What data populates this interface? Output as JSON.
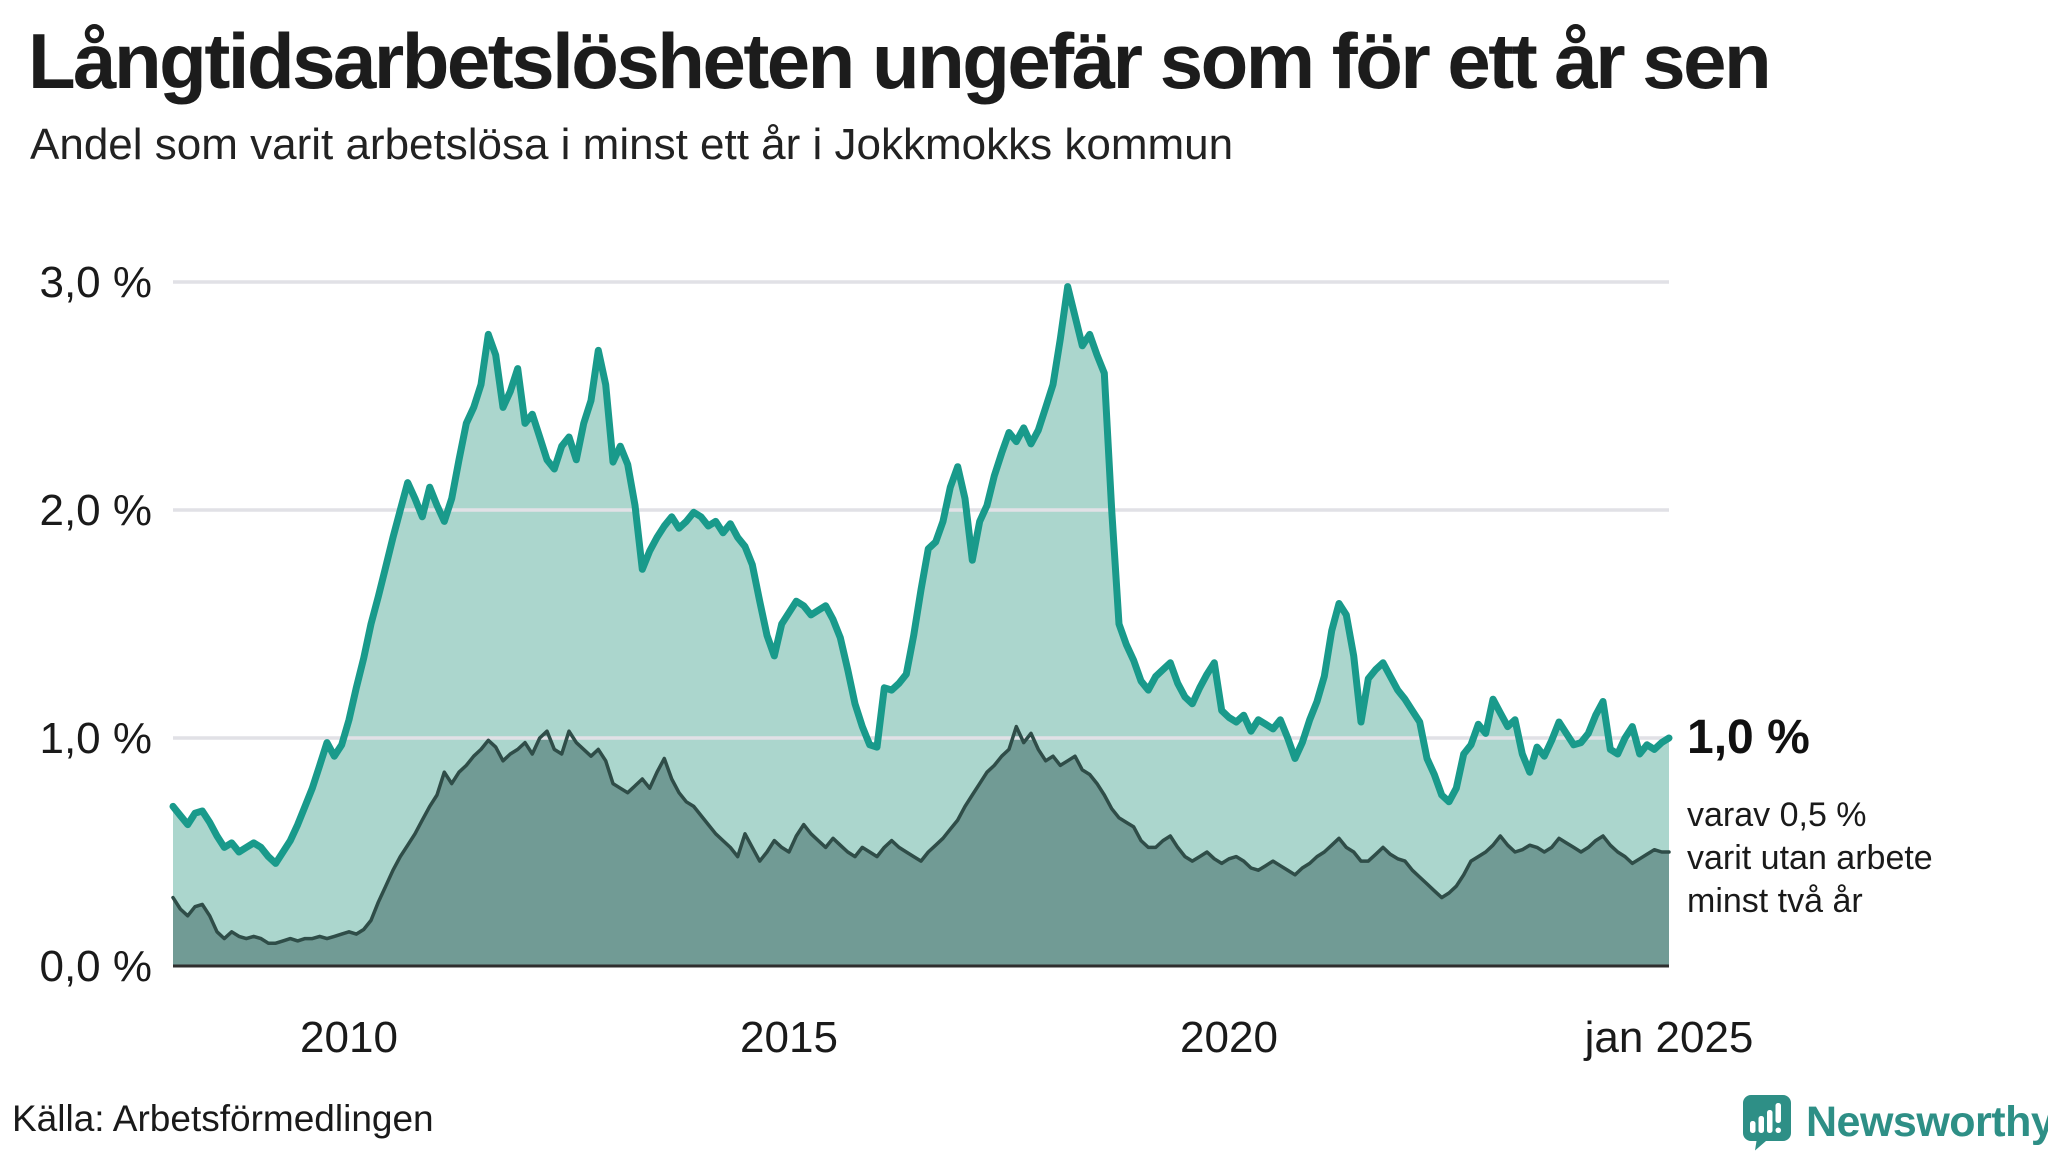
{
  "header": {
    "title": "Långtidsarbetslösheten ungefär som för ett år sen",
    "subtitle": "Andel som varit arbetslösa i minst ett år i Jokkmokks kommun"
  },
  "chart_data": {
    "type": "area",
    "title": "Långtidsarbetslösheten ungefär som för ett år sen",
    "subtitle": "Andel som varit arbetslösa i minst ett år i Jokkmokks kommun",
    "unit": "%",
    "x_start": "jan 2008",
    "x_end": "jan 2025",
    "x_total_years": 17,
    "y_max": 3,
    "grid_on": true,
    "grid_color": "#e1e1e6",
    "axis_color": "#2e2e2e",
    "y_ticks": [
      {
        "value": 3,
        "label": "3,0 %"
      },
      {
        "value": 2,
        "label": "2,0 %"
      },
      {
        "value": 1,
        "label": "1,0 %"
      },
      {
        "value": 0,
        "label": "0,0 %"
      }
    ],
    "x_ticks": [
      {
        "label": "2010",
        "t": 2
      },
      {
        "label": "2015",
        "t": 7
      },
      {
        "label": "2020",
        "t": 12
      },
      {
        "label": "jan 2025",
        "t": 17
      }
    ],
    "series": [
      {
        "name": "Andel arbetslösa minst ett år",
        "color": "#199a8b",
        "fill": "#abd6cd",
        "stroke_width": 7,
        "values": [
          0.7,
          0.66,
          0.62,
          0.67,
          0.68,
          0.63,
          0.57,
          0.52,
          0.54,
          0.5,
          0.52,
          0.54,
          0.52,
          0.48,
          0.45,
          0.5,
          0.55,
          0.62,
          0.7,
          0.78,
          0.88,
          0.98,
          0.92,
          0.97,
          1.08,
          1.22,
          1.35,
          1.5,
          1.62,
          1.75,
          1.88,
          2.0,
          2.12,
          2.05,
          1.97,
          2.1,
          2.02,
          1.95,
          2.05,
          2.22,
          2.38,
          2.45,
          2.55,
          2.77,
          2.68,
          2.45,
          2.52,
          2.62,
          2.38,
          2.42,
          2.32,
          2.22,
          2.18,
          2.28,
          2.32,
          2.22,
          2.38,
          2.48,
          2.7,
          2.55,
          2.21,
          2.28,
          2.2,
          2.02,
          1.74,
          1.82,
          1.88,
          1.93,
          1.97,
          1.92,
          1.95,
          1.99,
          1.97,
          1.93,
          1.95,
          1.9,
          1.94,
          1.88,
          1.84,
          1.76,
          1.6,
          1.45,
          1.36,
          1.5,
          1.55,
          1.6,
          1.58,
          1.54,
          1.56,
          1.58,
          1.52,
          1.44,
          1.3,
          1.15,
          1.05,
          0.97,
          0.96,
          1.22,
          1.21,
          1.24,
          1.28,
          1.45,
          1.65,
          1.83,
          1.86,
          1.95,
          2.1,
          2.19,
          2.05,
          1.78,
          1.95,
          2.02,
          2.15,
          2.25,
          2.34,
          2.3,
          2.36,
          2.29,
          2.35,
          2.45,
          2.55,
          2.75,
          2.98,
          2.85,
          2.72,
          2.77,
          2.68,
          2.6,
          2.0,
          1.5,
          1.41,
          1.34,
          1.25,
          1.21,
          1.27,
          1.3,
          1.33,
          1.24,
          1.18,
          1.15,
          1.22,
          1.28,
          1.33,
          1.12,
          1.09,
          1.07,
          1.1,
          1.03,
          1.08,
          1.06,
          1.04,
          1.08,
          1.0,
          0.91,
          0.98,
          1.08,
          1.16,
          1.27,
          1.47,
          1.59,
          1.54,
          1.36,
          1.07,
          1.26,
          1.3,
          1.33,
          1.27,
          1.21,
          1.17,
          1.12,
          1.07,
          0.91,
          0.84,
          0.75,
          0.72,
          0.78,
          0.93,
          0.97,
          1.06,
          1.02,
          1.17,
          1.11,
          1.05,
          1.08,
          0.93,
          0.85,
          0.96,
          0.92,
          0.99,
          1.07,
          1.02,
          0.97,
          0.98,
          1.02,
          1.1,
          1.16,
          0.95,
          0.93,
          1.0,
          1.05,
          0.93,
          0.97,
          0.95,
          0.98,
          1.0
        ]
      },
      {
        "name": "Andel arbetslösa minst två år",
        "color": "#2f4d48",
        "fill": "#719b95",
        "stroke_width": 3.5,
        "values": [
          0.3,
          0.25,
          0.22,
          0.26,
          0.27,
          0.22,
          0.15,
          0.12,
          0.15,
          0.13,
          0.12,
          0.13,
          0.12,
          0.1,
          0.1,
          0.11,
          0.12,
          0.11,
          0.12,
          0.12,
          0.13,
          0.12,
          0.13,
          0.14,
          0.15,
          0.14,
          0.16,
          0.2,
          0.28,
          0.35,
          0.42,
          0.48,
          0.53,
          0.58,
          0.64,
          0.7,
          0.75,
          0.85,
          0.8,
          0.85,
          0.88,
          0.92,
          0.95,
          0.99,
          0.96,
          0.9,
          0.93,
          0.95,
          0.98,
          0.93,
          1.0,
          1.03,
          0.95,
          0.93,
          1.03,
          0.98,
          0.95,
          0.92,
          0.95,
          0.9,
          0.8,
          0.78,
          0.76,
          0.79,
          0.82,
          0.78,
          0.85,
          0.91,
          0.82,
          0.76,
          0.72,
          0.7,
          0.66,
          0.62,
          0.58,
          0.55,
          0.52,
          0.48,
          0.58,
          0.52,
          0.46,
          0.5,
          0.55,
          0.52,
          0.5,
          0.57,
          0.62,
          0.58,
          0.55,
          0.52,
          0.56,
          0.53,
          0.5,
          0.48,
          0.52,
          0.5,
          0.48,
          0.52,
          0.55,
          0.52,
          0.5,
          0.48,
          0.46,
          0.5,
          0.53,
          0.56,
          0.6,
          0.64,
          0.7,
          0.75,
          0.8,
          0.85,
          0.88,
          0.92,
          0.95,
          1.05,
          0.98,
          1.02,
          0.95,
          0.9,
          0.92,
          0.88,
          0.9,
          0.92,
          0.86,
          0.84,
          0.8,
          0.75,
          0.69,
          0.65,
          0.63,
          0.61,
          0.55,
          0.52,
          0.52,
          0.55,
          0.57,
          0.52,
          0.48,
          0.46,
          0.48,
          0.5,
          0.47,
          0.45,
          0.47,
          0.48,
          0.46,
          0.43,
          0.42,
          0.44,
          0.46,
          0.44,
          0.42,
          0.4,
          0.43,
          0.45,
          0.48,
          0.5,
          0.53,
          0.56,
          0.52,
          0.5,
          0.46,
          0.46,
          0.49,
          0.52,
          0.49,
          0.47,
          0.46,
          0.42,
          0.39,
          0.36,
          0.33,
          0.3,
          0.32,
          0.35,
          0.4,
          0.46,
          0.48,
          0.5,
          0.53,
          0.57,
          0.53,
          0.5,
          0.51,
          0.53,
          0.52,
          0.5,
          0.52,
          0.56,
          0.54,
          0.52,
          0.5,
          0.52,
          0.55,
          0.57,
          0.53,
          0.5,
          0.48,
          0.45,
          0.47,
          0.49,
          0.51,
          0.5,
          0.5
        ]
      }
    ],
    "annotations": {
      "end_value_label": "1,0 %",
      "sub_lines": [
        "varav 0,5 %",
        "varit utan arbete",
        "minst två år"
      ]
    }
  },
  "footer": {
    "source": "Källa: Arbetsförmedlingen",
    "logo_text": "Newsworthy"
  },
  "colors": {
    "accent_teal": "#199a8b",
    "light_fill": "#abd6cd",
    "dark_green": "#2f4d48",
    "dark_fill": "#719b95",
    "logo_teal": "#2e8f86",
    "gridline": "#e1e1e6"
  }
}
